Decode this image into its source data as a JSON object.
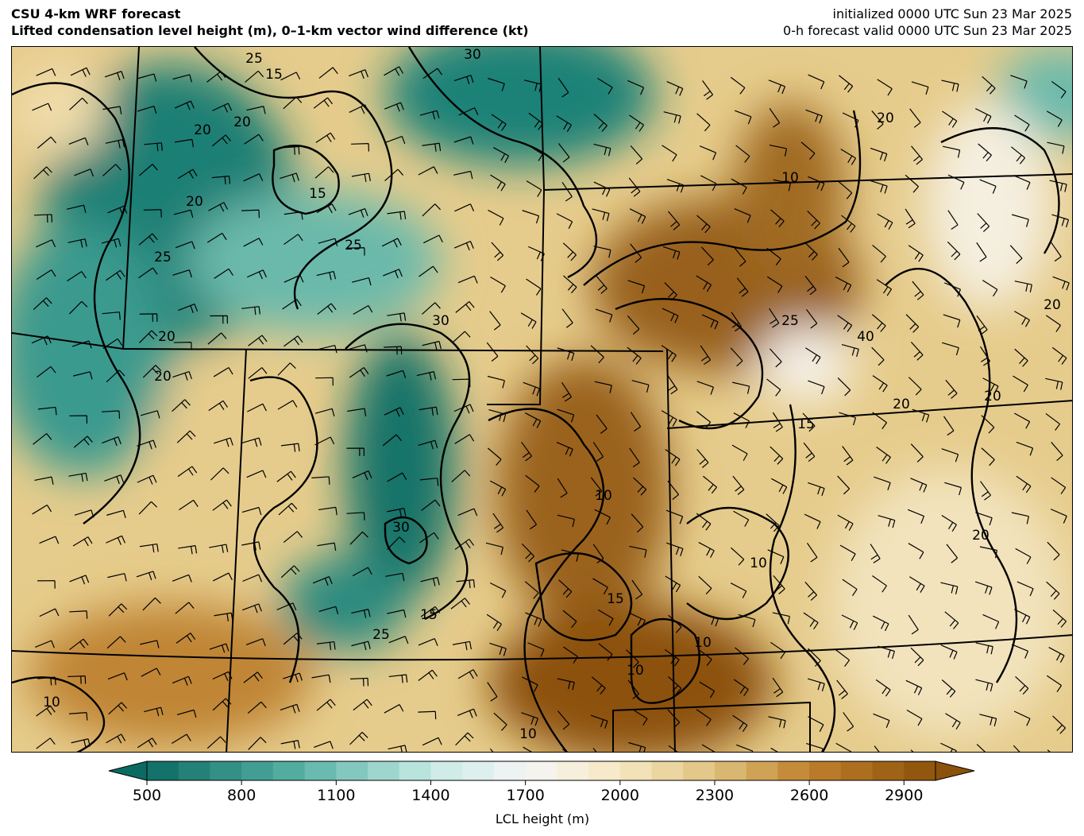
{
  "header": {
    "title": "CSU 4-km WRF forecast",
    "subtitle": "Lifted condensation level height (m), 0–1-km vector wind difference (kt)",
    "init": "initialized 0000 UTC Sun 23 Mar 2025",
    "valid": "0-h forecast valid 0000 UTC Sun 23 Mar 2025"
  },
  "colorbar": {
    "label": "LCL height (m)",
    "min": 500,
    "max": 3000,
    "step": 100,
    "extend": "both",
    "ticks": [
      "500",
      "800",
      "1100",
      "1400",
      "1700",
      "2000",
      "2300",
      "2600",
      "2900"
    ],
    "colors": {
      "500": "#0b6b63",
      "1000": "#5ab4a6",
      "1400": "#c7eae5",
      "1700": "#f5f5f5",
      "2000": "#f6e8c3",
      "2300": "#dfc27d",
      "2600": "#bf812d",
      "3000": "#8c510a"
    }
  },
  "contour_labels": [
    "10",
    "15",
    "20",
    "25",
    "30",
    "20",
    "25",
    "15",
    "20",
    "25",
    "20",
    "30",
    "10",
    "10",
    "15",
    "20",
    "25",
    "10",
    "15",
    "20",
    "30",
    "25",
    "15",
    "10",
    "10",
    "20",
    "40",
    "20",
    "20",
    "20",
    "10"
  ]
}
